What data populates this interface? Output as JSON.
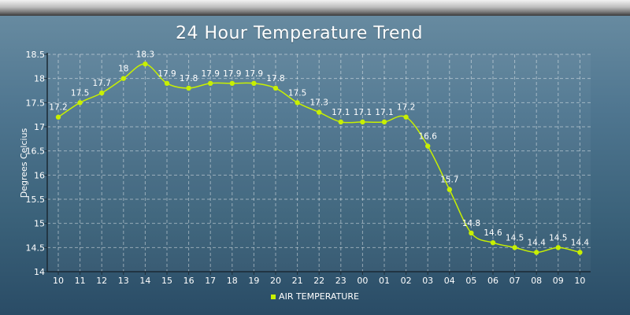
{
  "chart_data": {
    "type": "line",
    "title": "24 Hour Temperature Trend",
    "ylabel": "Degrees Celcius",
    "xlabel": "",
    "ylim": [
      14,
      18.5
    ],
    "y_ticks": [
      "14",
      "14.5",
      "15",
      "15.5",
      "16",
      "16.5",
      "17",
      "17.5",
      "18",
      "18.5"
    ],
    "categories": [
      "10",
      "11",
      "12",
      "13",
      "14",
      "15",
      "16",
      "17",
      "18",
      "19",
      "20",
      "21",
      "22",
      "23",
      "00",
      "01",
      "02",
      "03",
      "04",
      "05",
      "06",
      "07",
      "08",
      "09",
      "10"
    ],
    "series": [
      {
        "name": "AIR TEMPERATURE",
        "color": "#c8f000",
        "values": [
          17.2,
          17.5,
          17.7,
          18.0,
          18.3,
          17.9,
          17.8,
          17.9,
          17.9,
          17.9,
          17.8,
          17.5,
          17.3,
          17.1,
          17.1,
          17.1,
          17.2,
          16.6,
          15.7,
          14.8,
          14.6,
          14.5,
          14.4,
          14.5,
          14.4
        ],
        "labels": [
          "17.2",
          "17.5",
          "17.7",
          "18",
          "18.3",
          "17.9",
          "17.8",
          "17.9",
          "17.9",
          "17.9",
          "17.8",
          "17.5",
          "17.3",
          "17.1",
          "17.1",
          "17.1",
          "17.2",
          "16.6",
          "15.7",
          "14.8",
          "14.6",
          "14.5",
          "14.4",
          "14.5",
          "14.4"
        ]
      }
    ],
    "grid": true,
    "legend_position": "bottom-center"
  }
}
